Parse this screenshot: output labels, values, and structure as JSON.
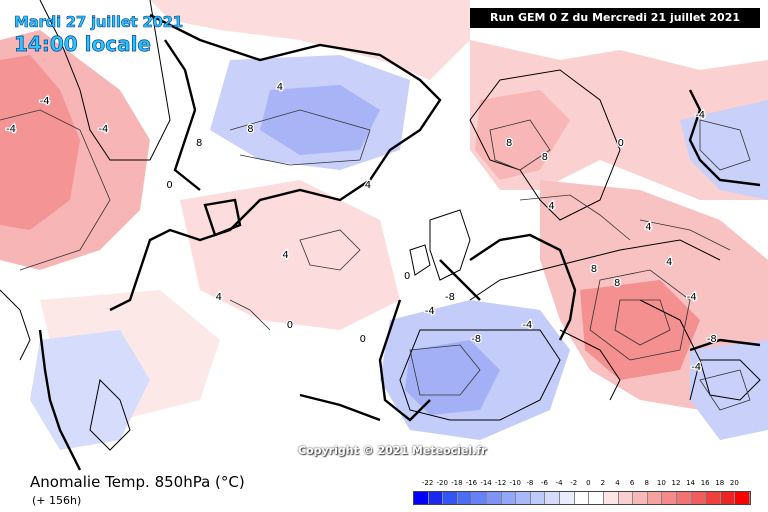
{
  "header": {
    "date_label": "Mardi 27 juillet 2021",
    "time_label": "14:00 locale",
    "run_label": "Run GEM 0 Z du Mercredi 21 juillet 2021"
  },
  "footer": {
    "parameter_title": "Anomalie Temp. 850hPa (°C)",
    "lead_time": "(+ 156h)"
  },
  "map": {
    "copyright": "Copyright © 2021 Meteociel.fr",
    "labels": [
      {
        "text": "4",
        "lon": -34,
        "lat": 72
      },
      {
        "text": "8",
        "lon": -46,
        "lat": 64
      },
      {
        "text": "8",
        "lon": -38,
        "lat": 66
      },
      {
        "text": "-4",
        "lon": -72,
        "lat": 70
      },
      {
        "text": "-4",
        "lon": -80,
        "lat": 66
      },
      {
        "text": "-4",
        "lon": -62,
        "lat": 66
      },
      {
        "text": "0",
        "lon": -50,
        "lat": 58
      },
      {
        "text": "4",
        "lon": -30,
        "lat": 48
      },
      {
        "text": "4",
        "lon": -40,
        "lat": 42
      },
      {
        "text": "0",
        "lon": -28,
        "lat": 38
      },
      {
        "text": "4",
        "lon": -18,
        "lat": 58
      },
      {
        "text": "8",
        "lon": 4,
        "lat": 64
      },
      {
        "text": "8",
        "lon": 10,
        "lat": 62
      },
      {
        "text": "0",
        "lon": 22,
        "lat": 64
      },
      {
        "text": "-4",
        "lon": 34,
        "lat": 68
      },
      {
        "text": "4",
        "lon": 12,
        "lat": 55
      },
      {
        "text": "4",
        "lon": 28,
        "lat": 52
      },
      {
        "text": "8",
        "lon": 20,
        "lat": 46
      },
      {
        "text": "8",
        "lon": 24,
        "lat": 44
      },
      {
        "text": "4",
        "lon": 32,
        "lat": 47
      },
      {
        "text": "-4",
        "lon": 36,
        "lat": 42
      },
      {
        "text": "-8",
        "lon": -3,
        "lat": 42
      },
      {
        "text": "-4",
        "lon": -6,
        "lat": 40
      },
      {
        "text": "-8",
        "lon": 2,
        "lat": 36
      },
      {
        "text": "-4",
        "lon": 10,
        "lat": 38
      },
      {
        "text": "0",
        "lon": -10,
        "lat": 45
      },
      {
        "text": "0",
        "lon": -16,
        "lat": 36
      },
      {
        "text": "-8",
        "lon": 40,
        "lat": 36
      },
      {
        "text": "-4",
        "lon": 38,
        "lat": 32
      }
    ]
  },
  "legend": {
    "ticks": [
      "-22",
      "-20",
      "-18",
      "-16",
      "-14",
      "-12",
      "-10",
      "-8",
      "-6",
      "-4",
      "-2",
      "0",
      "2",
      "4",
      "6",
      "8",
      "10",
      "12",
      "14",
      "16",
      "18",
      "20"
    ],
    "colors": [
      "#0000ff",
      "#1a28f0",
      "#3355f5",
      "#4c6ef5",
      "#6680f7",
      "#7d93f8",
      "#93a6f9",
      "#a8b8fb",
      "#bec9fc",
      "#d4dbfd",
      "#e8ecfe",
      "#ffffff",
      "#ffffff",
      "#fde5e5",
      "#fbcfcf",
      "#f9b8b8",
      "#f7a1a1",
      "#f58a8a",
      "#f37373",
      "#f15c5c",
      "#ef4040",
      "#ed2424",
      "#ff0000"
    ]
  }
}
